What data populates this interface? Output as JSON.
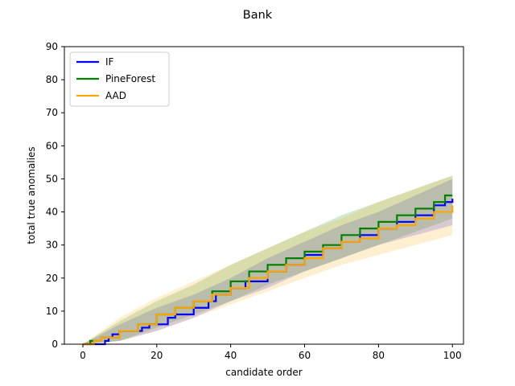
{
  "chart_data": {
    "type": "line",
    "title": "Bank",
    "xlabel": "candidate order",
    "ylabel": "total true anomalies",
    "xlim": [
      -5,
      103
    ],
    "ylim": [
      0,
      90
    ],
    "xticks": [
      0,
      20,
      40,
      60,
      80,
      100
    ],
    "yticks": [
      0,
      10,
      20,
      30,
      40,
      50,
      60,
      70,
      80,
      90
    ],
    "grid": false,
    "legend_position": "top-left",
    "series": [
      {
        "name": "IF",
        "color": "#0000ff",
        "points": [
          [
            0,
            0
          ],
          [
            5,
            0
          ],
          [
            6,
            1
          ],
          [
            7,
            2
          ],
          [
            8,
            3
          ],
          [
            10,
            4
          ],
          [
            15,
            4
          ],
          [
            16,
            5
          ],
          [
            18,
            6
          ],
          [
            22,
            6
          ],
          [
            23,
            8
          ],
          [
            25,
            9
          ],
          [
            30,
            11
          ],
          [
            34,
            13
          ],
          [
            36,
            15
          ],
          [
            40,
            17
          ],
          [
            44,
            19
          ],
          [
            50,
            22
          ],
          [
            55,
            24
          ],
          [
            60,
            27
          ],
          [
            65,
            29
          ],
          [
            70,
            31
          ],
          [
            75,
            33
          ],
          [
            80,
            35
          ],
          [
            85,
            37
          ],
          [
            90,
            39
          ],
          [
            95,
            42
          ],
          [
            98,
            43
          ],
          [
            100,
            44
          ]
        ],
        "band_lower": [
          [
            0,
            0
          ],
          [
            10,
            1
          ],
          [
            20,
            4
          ],
          [
            30,
            8
          ],
          [
            40,
            13
          ],
          [
            50,
            17
          ],
          [
            60,
            22
          ],
          [
            70,
            26
          ],
          [
            80,
            30
          ],
          [
            90,
            33
          ],
          [
            100,
            36
          ]
        ],
        "band_upper": [
          [
            0,
            0
          ],
          [
            10,
            6
          ],
          [
            20,
            11
          ],
          [
            30,
            15
          ],
          [
            40,
            20
          ],
          [
            50,
            26
          ],
          [
            60,
            31
          ],
          [
            70,
            36
          ],
          [
            80,
            40
          ],
          [
            90,
            45
          ],
          [
            100,
            50
          ]
        ]
      },
      {
        "name": "PineForest",
        "color": "#008000",
        "points": [
          [
            0,
            0
          ],
          [
            2,
            1
          ],
          [
            5,
            2
          ],
          [
            10,
            4
          ],
          [
            15,
            6
          ],
          [
            20,
            9
          ],
          [
            25,
            11
          ],
          [
            30,
            13
          ],
          [
            35,
            16
          ],
          [
            40,
            19
          ],
          [
            45,
            22
          ],
          [
            50,
            24
          ],
          [
            55,
            26
          ],
          [
            60,
            28
          ],
          [
            65,
            30
          ],
          [
            70,
            33
          ],
          [
            75,
            35
          ],
          [
            80,
            37
          ],
          [
            85,
            39
          ],
          [
            90,
            41
          ],
          [
            95,
            43
          ],
          [
            98,
            45
          ],
          [
            100,
            45
          ]
        ],
        "band_lower": [
          [
            0,
            0
          ],
          [
            10,
            1
          ],
          [
            20,
            5
          ],
          [
            30,
            9
          ],
          [
            40,
            13
          ],
          [
            50,
            18
          ],
          [
            60,
            22
          ],
          [
            70,
            26
          ],
          [
            80,
            30
          ],
          [
            90,
            34
          ],
          [
            100,
            38
          ]
        ],
        "band_upper": [
          [
            0,
            0
          ],
          [
            10,
            7
          ],
          [
            20,
            13
          ],
          [
            30,
            18
          ],
          [
            40,
            24
          ],
          [
            50,
            29
          ],
          [
            60,
            34
          ],
          [
            70,
            39
          ],
          [
            80,
            43
          ],
          [
            90,
            47
          ],
          [
            100,
            51
          ]
        ]
      },
      {
        "name": "AAD",
        "color": "#ffa500",
        "points": [
          [
            0,
            0
          ],
          [
            3,
            1
          ],
          [
            5,
            2
          ],
          [
            10,
            4
          ],
          [
            15,
            6
          ],
          [
            20,
            9
          ],
          [
            25,
            11
          ],
          [
            30,
            13
          ],
          [
            35,
            15
          ],
          [
            40,
            17
          ],
          [
            45,
            20
          ],
          [
            50,
            22
          ],
          [
            55,
            24
          ],
          [
            60,
            26
          ],
          [
            65,
            29
          ],
          [
            70,
            31
          ],
          [
            75,
            32
          ],
          [
            80,
            35
          ],
          [
            85,
            36
          ],
          [
            90,
            38
          ],
          [
            95,
            40
          ],
          [
            100,
            42
          ]
        ],
        "band_lower": [
          [
            0,
            0
          ],
          [
            10,
            1
          ],
          [
            20,
            4
          ],
          [
            30,
            8
          ],
          [
            40,
            12
          ],
          [
            50,
            16
          ],
          [
            60,
            20
          ],
          [
            70,
            24
          ],
          [
            80,
            27
          ],
          [
            90,
            30
          ],
          [
            100,
            33
          ]
        ],
        "band_upper": [
          [
            0,
            0
          ],
          [
            10,
            8
          ],
          [
            20,
            14
          ],
          [
            30,
            19
          ],
          [
            40,
            24
          ],
          [
            50,
            29
          ],
          [
            60,
            34
          ],
          [
            70,
            38
          ],
          [
            80,
            43
          ],
          [
            90,
            47
          ],
          [
            100,
            51
          ]
        ]
      }
    ]
  }
}
